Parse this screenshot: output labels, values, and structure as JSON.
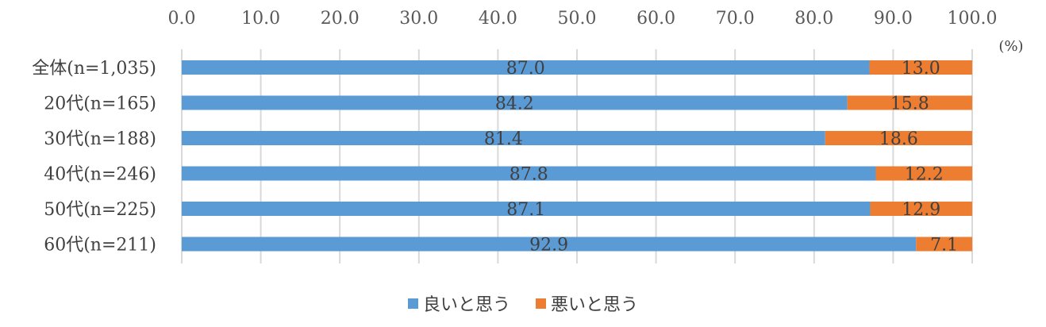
{
  "chart_data": {
    "type": "bar",
    "orientation": "horizontal",
    "stacked": true,
    "categories": [
      "全体(n=1,035)",
      "20代(n=165)",
      "30代(n=188)",
      "40代(n=246)",
      "50代(n=225)",
      "60代(n=211)"
    ],
    "series": [
      {
        "name": "良いと思う",
        "color": "#5B9BD5",
        "values": [
          87.0,
          84.2,
          81.4,
          87.8,
          87.1,
          92.9
        ]
      },
      {
        "name": "悪いと思う",
        "color": "#ED7D31",
        "values": [
          13.0,
          15.8,
          18.6,
          12.2,
          12.9,
          7.1
        ]
      }
    ],
    "xlim": [
      0,
      100
    ],
    "xticks": [
      "0.0",
      "10.0",
      "20.0",
      "30.0",
      "40.0",
      "50.0",
      "60.0",
      "70.0",
      "80.0",
      "90.0",
      "100.0"
    ],
    "x_axis_position": "top",
    "unit": "(%)",
    "grid": true,
    "legend_position": "bottom",
    "data_labels": true
  }
}
